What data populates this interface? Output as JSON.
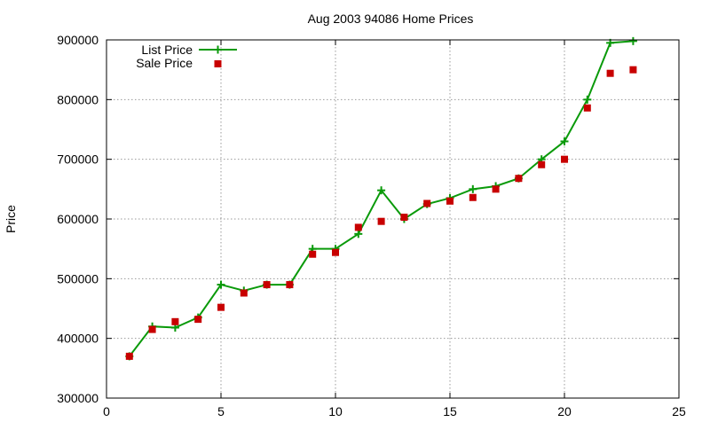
{
  "chart_data": {
    "type": "line",
    "title": "Aug 2003 94086 Home Prices",
    "xlabel": "",
    "ylabel": "Price",
    "xlim": [
      0,
      25
    ],
    "ylim": [
      300000,
      900000
    ],
    "x_ticks": [
      0,
      5,
      10,
      15,
      20,
      25
    ],
    "x_tick_labels": [
      "0",
      "5",
      "10",
      "15",
      "20",
      "25"
    ],
    "y_ticks": [
      300000,
      400000,
      500000,
      600000,
      700000,
      800000,
      900000
    ],
    "y_tick_labels": [
      "300000",
      "400000",
      "500000",
      "600000",
      "700000",
      "800000",
      "900000"
    ],
    "grid": true,
    "legend_position": "top-left",
    "colors": {
      "list": "#0a9a0a",
      "sale": "#c80000",
      "grid": "#9a9a9a"
    },
    "x": [
      1,
      2,
      3,
      4,
      5,
      6,
      7,
      8,
      9,
      10,
      11,
      12,
      13,
      14,
      15,
      16,
      17,
      18,
      19,
      20,
      21,
      22,
      23
    ],
    "series": [
      {
        "name": "List Price",
        "style": "line-plus",
        "values": [
          370000,
          420000,
          418000,
          435000,
          490000,
          480000,
          490000,
          490000,
          550000,
          550000,
          575000,
          648000,
          600000,
          625000,
          635000,
          650000,
          655000,
          668000,
          700000,
          730000,
          800000,
          895000,
          898000
        ]
      },
      {
        "name": "Sale Price",
        "style": "square",
        "values": [
          370000,
          415000,
          428000,
          432000,
          452000,
          476000,
          490000,
          490000,
          541000,
          544000,
          586000,
          596000,
          603000,
          626000,
          630000,
          636000,
          650000,
          668000,
          691000,
          700000,
          786000,
          844000,
          850000
        ]
      }
    ]
  }
}
